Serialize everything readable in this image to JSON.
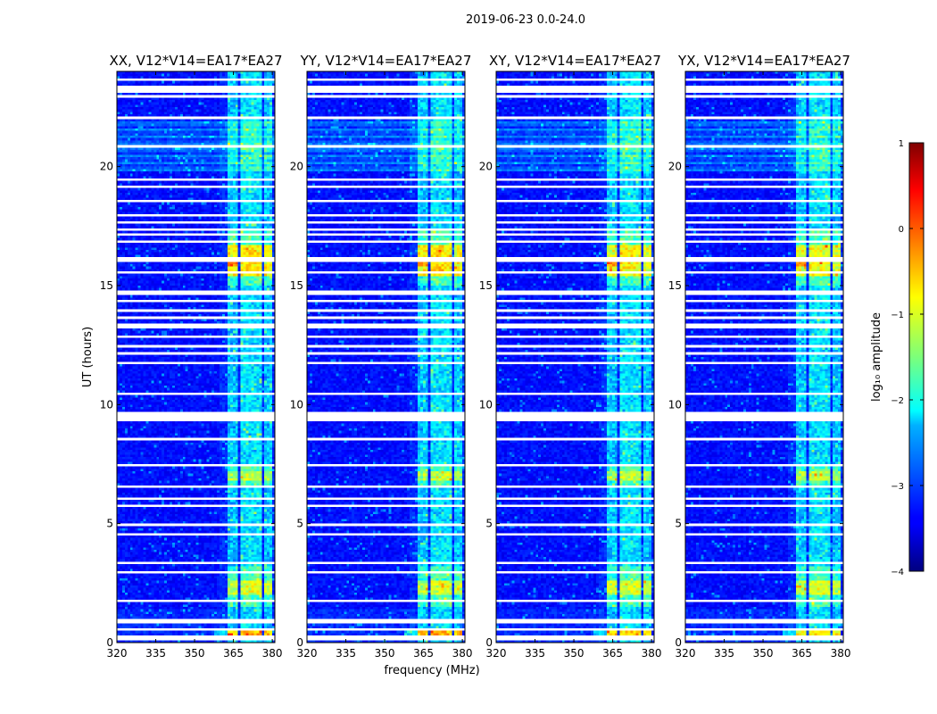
{
  "chart_data": {
    "type": "heatmap",
    "suptitle": "2019-06-23 0.0-24.0",
    "panels": [
      {
        "title": "XX, V12*V14=EA17*EA27",
        "boost": 1.0
      },
      {
        "title": "YY, V12*V14=EA17*EA27",
        "boost": 1.0
      },
      {
        "title": "XY, V12*V14=EA17*EA27",
        "boost": 0.9
      },
      {
        "title": "YX, V12*V14=EA17*EA27",
        "boost": 0.85
      }
    ],
    "xlabel": "frequency (MHz)",
    "ylabel": "UT (hours)",
    "xlim": [
      320,
      381
    ],
    "ylim": [
      0,
      24
    ],
    "xticks": [
      "320",
      "335",
      "350",
      "365",
      "380"
    ],
    "xtick_values": [
      320,
      335,
      350,
      365,
      380
    ],
    "yticks": [
      "0",
      "5",
      "10",
      "15",
      "20"
    ],
    "ytick_values": [
      0,
      5,
      10,
      15,
      20
    ],
    "colorbar": {
      "label": "log₁₀ amplitude",
      "range": [
        -4,
        1
      ],
      "ticks": [
        "1",
        "0",
        "−1",
        "−2",
        "−3",
        "−4"
      ],
      "tick_values": [
        1,
        0,
        -1,
        -2,
        -3,
        -4
      ],
      "colormap": "jet"
    },
    "rfi_channels_mhz": [
      [
        362.5,
        367
      ],
      [
        367.3,
        371.5
      ],
      [
        372.2,
        375.6
      ],
      [
        376.6,
        380.4
      ]
    ],
    "flagged_time_bands_hours": [
      [
        0.12,
        0.28
      ],
      [
        0.5,
        0.62
      ],
      [
        0.8,
        1.0
      ],
      [
        1.45,
        1.52
      ],
      [
        1.7,
        1.78
      ],
      [
        2.93,
        3.02
      ],
      [
        3.28,
        3.36
      ],
      [
        3.95,
        4.02
      ],
      [
        4.52,
        4.6
      ],
      [
        4.94,
        5.0
      ],
      [
        5.28,
        5.35
      ],
      [
        5.68,
        5.76
      ],
      [
        6.05,
        6.13
      ],
      [
        6.46,
        6.62
      ],
      [
        7.4,
        7.55
      ],
      [
        7.66,
        7.72
      ],
      [
        8.08,
        8.14
      ],
      [
        8.5,
        8.56
      ],
      [
        8.96,
        9.04
      ],
      [
        9.35,
        9.45
      ],
      [
        9.55,
        9.7
      ],
      [
        10.45,
        10.51
      ],
      [
        11.72,
        11.79
      ],
      [
        12.1,
        12.17
      ],
      [
        12.4,
        12.47
      ],
      [
        12.85,
        12.92
      ],
      [
        13.25,
        13.35
      ],
      [
        13.65,
        13.72
      ],
      [
        13.95,
        14.01
      ],
      [
        14.35,
        14.42
      ],
      [
        14.6,
        14.8
      ],
      [
        15.08,
        15.14
      ],
      [
        15.5,
        15.56
      ],
      [
        16.05,
        16.18
      ],
      [
        16.58,
        16.63
      ],
      [
        16.85,
        16.92
      ],
      [
        17.12,
        17.18
      ],
      [
        17.35,
        17.42
      ],
      [
        17.58,
        17.65
      ],
      [
        17.95,
        18.02
      ],
      [
        18.55,
        18.62
      ],
      [
        19.1,
        19.17
      ],
      [
        19.45,
        19.52
      ],
      [
        19.88,
        19.93
      ],
      [
        20.85,
        20.92
      ],
      [
        22.05,
        22.12
      ],
      [
        22.95,
        23.03
      ],
      [
        23.15,
        23.35
      ],
      [
        23.6,
        23.68
      ]
    ],
    "high_amplitude_time_bands_hours": [
      [
        0.25,
        0.55
      ],
      [
        2.0,
        2.6
      ],
      [
        6.75,
        7.25
      ],
      [
        15.2,
        16.8
      ]
    ]
  }
}
